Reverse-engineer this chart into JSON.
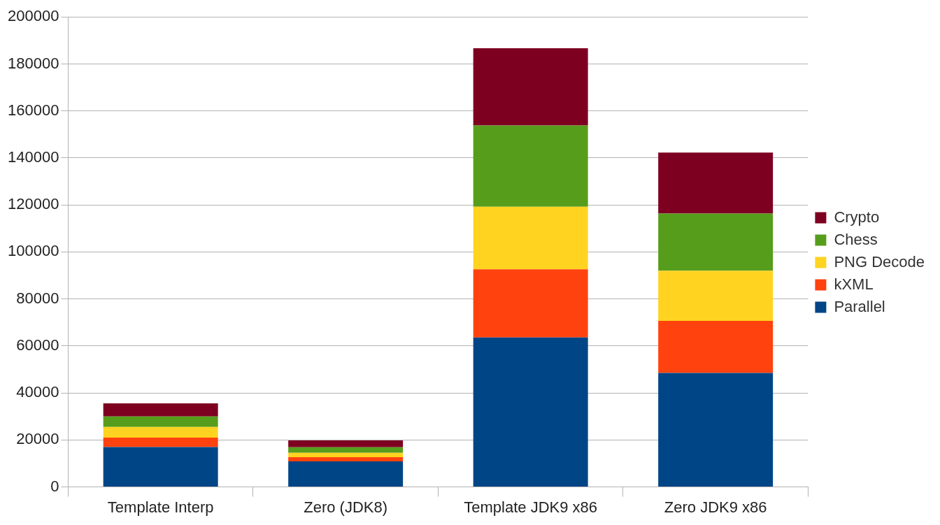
{
  "chart_data": {
    "type": "bar",
    "stacked": true,
    "categories": [
      "Template Interp",
      "Zero (JDK8)",
      "Template JDK9 x86",
      "Zero JDK9 x86"
    ],
    "series": [
      {
        "name": "Parallel",
        "color": "#004586",
        "values": [
          17000,
          10900,
          63600,
          48500
        ]
      },
      {
        "name": "kXML",
        "color": "#ff420e",
        "values": [
          4000,
          1800,
          29000,
          22200
        ]
      },
      {
        "name": "PNG Decode",
        "color": "#ffd320",
        "values": [
          4500,
          1800,
          26600,
          21300
        ]
      },
      {
        "name": "Chess",
        "color": "#579d1c",
        "values": [
          4500,
          2400,
          34600,
          24300
        ]
      },
      {
        "name": "Crypto",
        "color": "#7e0021",
        "values": [
          5600,
          2900,
          32900,
          26000
        ]
      }
    ],
    "ylim": [
      0,
      200000
    ],
    "yticks": [
      0,
      20000,
      40000,
      60000,
      80000,
      100000,
      120000,
      140000,
      160000,
      180000,
      200000
    ],
    "grid": "y",
    "legend": "right"
  }
}
